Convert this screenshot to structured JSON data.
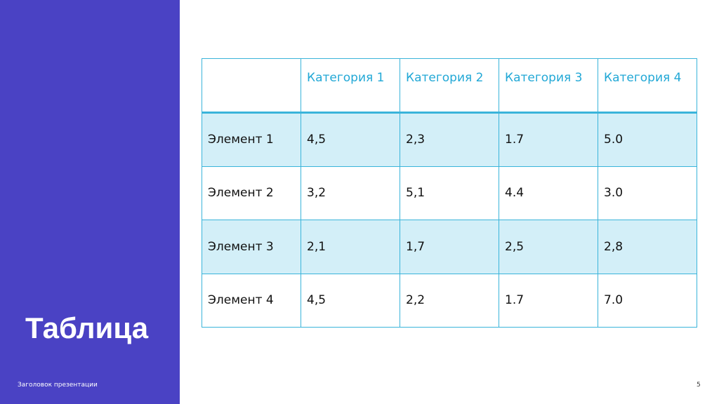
{
  "slide": {
    "title": "Таблица",
    "footer": "Заголовок презентации",
    "page_number": "5"
  },
  "table": {
    "header": [
      "Категория 1",
      "Категория 2",
      "Категория 3",
      "Категория 4"
    ],
    "rows": [
      [
        "Элемент 1",
        "4,5",
        "2,3",
        "1.7",
        "5.0"
      ],
      [
        "Элемент 2",
        "3,2",
        "5,1",
        "4.4",
        "3.0"
      ],
      [
        "Элемент 3",
        "2,1",
        "1,7",
        "2,5",
        "2,8"
      ],
      [
        "Элемент 4",
        "4,5",
        "2,2",
        "1.7",
        "7.0"
      ]
    ]
  }
}
